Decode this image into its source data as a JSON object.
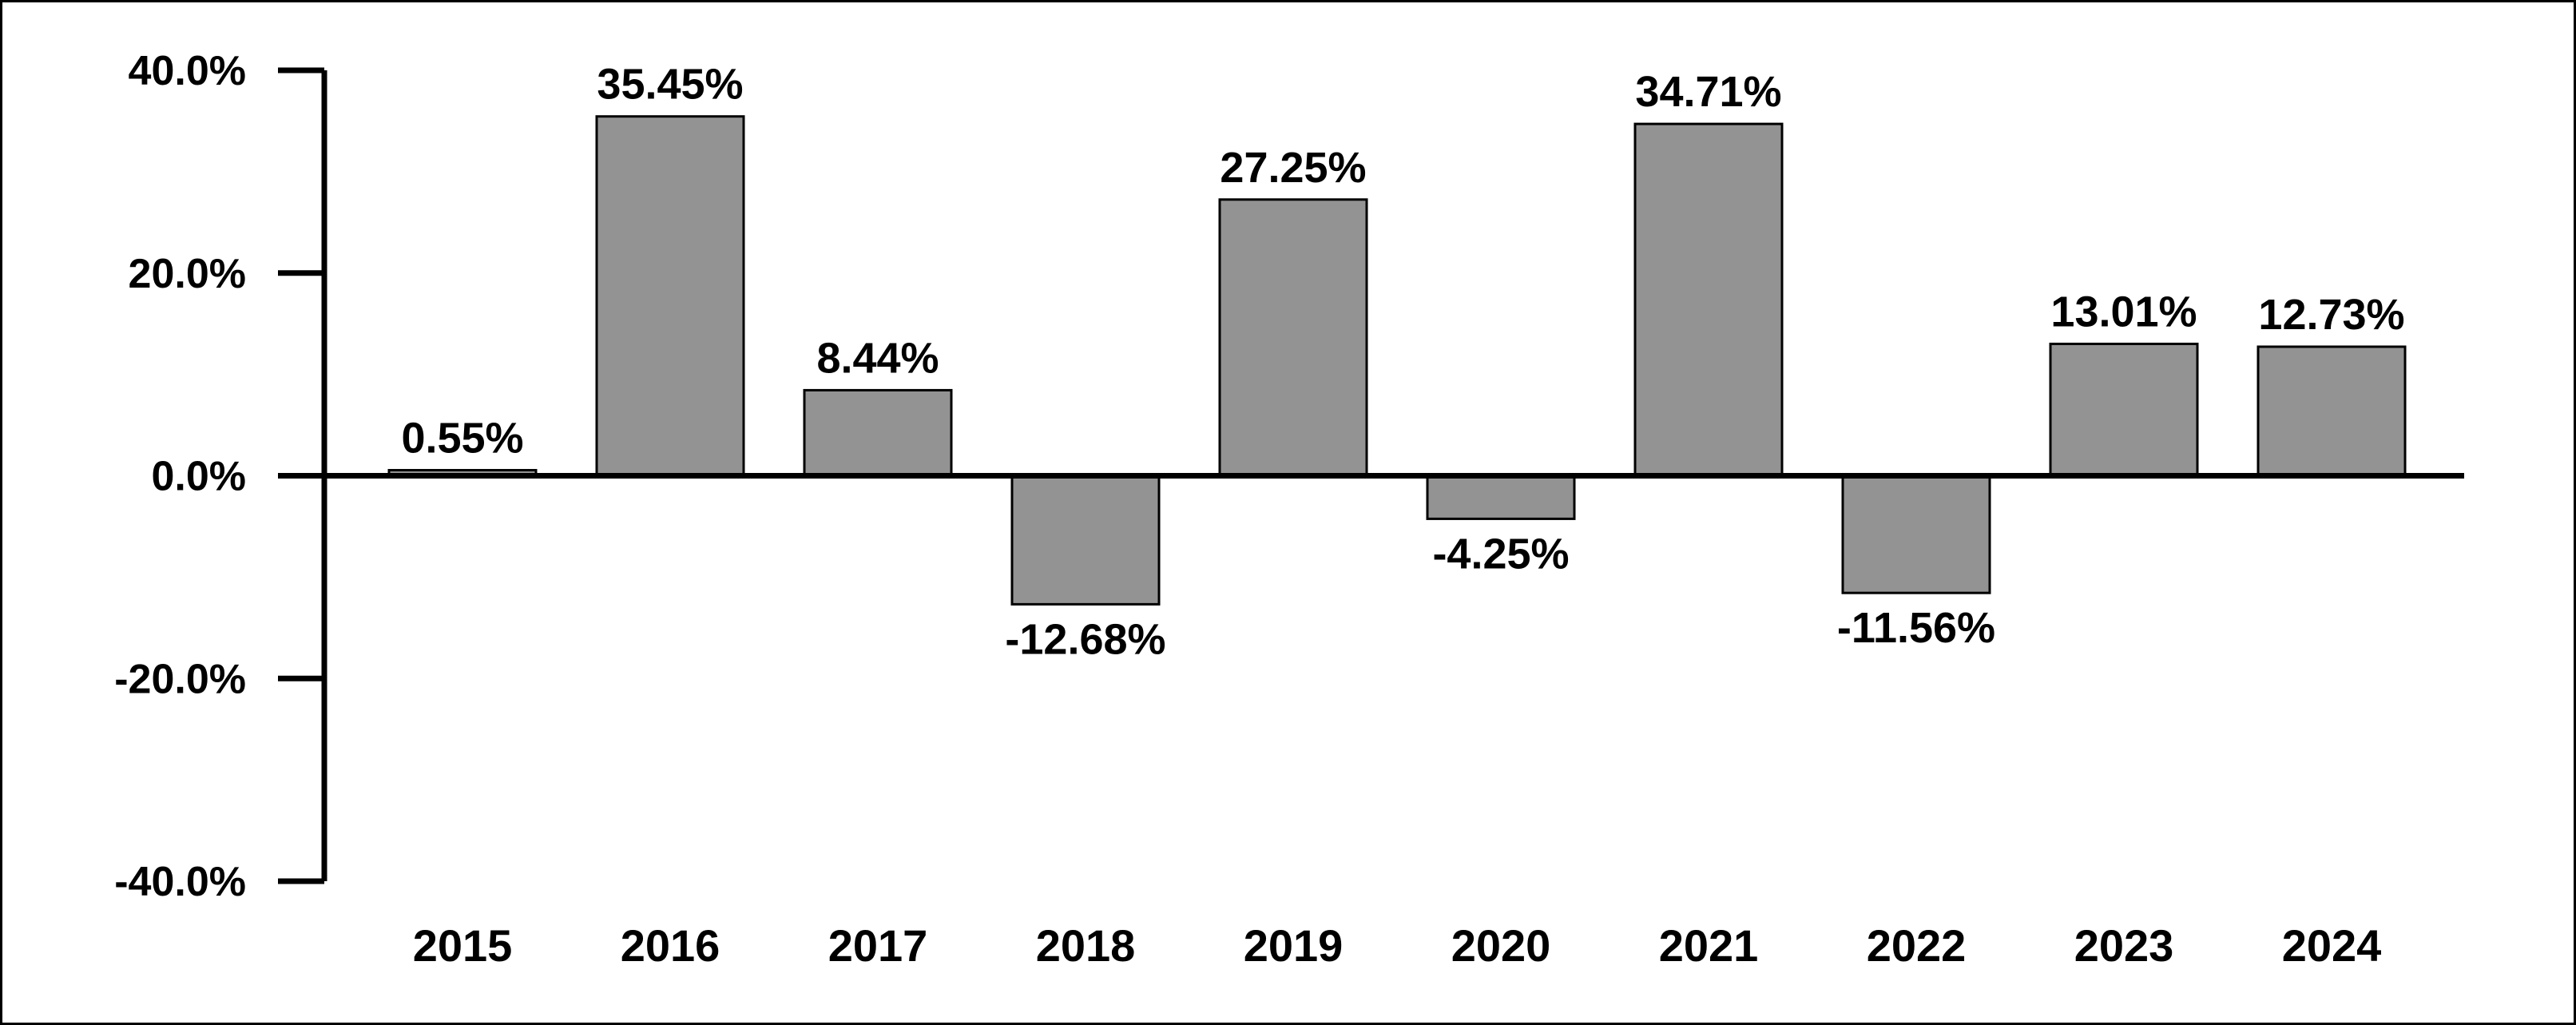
{
  "chart_data": {
    "type": "bar",
    "title": "",
    "xlabel": "",
    "ylabel": "",
    "categories": [
      "2015",
      "2016",
      "2017",
      "2018",
      "2019",
      "2020",
      "2021",
      "2022",
      "2023",
      "2024"
    ],
    "values": [
      0.55,
      35.45,
      8.44,
      -12.68,
      27.25,
      -4.25,
      34.71,
      -11.56,
      13.01,
      12.73
    ],
    "data_labels": [
      "0.55%",
      "35.45%",
      "8.44%",
      "-12.68%",
      "27.25%",
      "-4.25%",
      "34.71%",
      "-11.56%",
      "13.01%",
      "12.73%"
    ],
    "ylim": [
      -40,
      40
    ],
    "y_ticks": [
      40,
      20,
      0,
      -20,
      -40
    ],
    "y_tick_labels": [
      "40.0%",
      "20.0%",
      "0.0%",
      "-20.0%",
      "-40.0%"
    ],
    "grid": false,
    "legend": "none",
    "bar_color": "#939393",
    "bar_stroke": "#000000"
  }
}
